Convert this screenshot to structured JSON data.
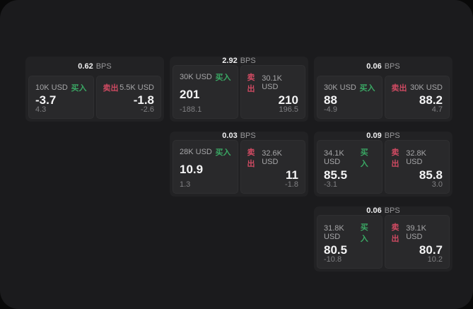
{
  "theme": {
    "page_bg": "#090909",
    "panel_bg": "#1b1b1d",
    "card_bg": "#222224",
    "tile_bg": "#29292b",
    "buy_color": "#3aa864",
    "sell_color": "#cf4a62"
  },
  "labels": {
    "unit": "BPS",
    "buy": "买入",
    "sell": "卖出"
  },
  "cards": [
    {
      "bps": "0.62",
      "buy": {
        "amount": "10K USD",
        "value": "-3.7",
        "sub": "4.3"
      },
      "sell": {
        "amount": "5.5K USD",
        "value": "-1.8",
        "sub": "-2.6"
      }
    },
    {
      "bps": "2.92",
      "buy": {
        "amount": "30K USD",
        "value": "201",
        "sub": "-188.1"
      },
      "sell": {
        "amount": "30.1K USD",
        "value": "210",
        "sub": "196.5"
      }
    },
    {
      "bps": "0.06",
      "buy": {
        "amount": "30K USD",
        "value": "88",
        "sub": "-4.9"
      },
      "sell": {
        "amount": "30K USD",
        "value": "88.2",
        "sub": "4.7"
      }
    },
    {
      "bps": "0.03",
      "buy": {
        "amount": "28K USD",
        "value": "10.9",
        "sub": "1.3"
      },
      "sell": {
        "amount": "32.6K USD",
        "value": "11",
        "sub": "-1.8"
      }
    },
    {
      "bps": "0.09",
      "buy": {
        "amount": "34.1K USD",
        "value": "85.5",
        "sub": "-3.1"
      },
      "sell": {
        "amount": "32.8K USD",
        "value": "85.8",
        "sub": "3.0"
      }
    },
    {
      "bps": "0.06",
      "buy": {
        "amount": "31.8K USD",
        "value": "80.5",
        "sub": "-10.8"
      },
      "sell": {
        "amount": "39.1K USD",
        "value": "80.7",
        "sub": "10.2"
      }
    }
  ]
}
